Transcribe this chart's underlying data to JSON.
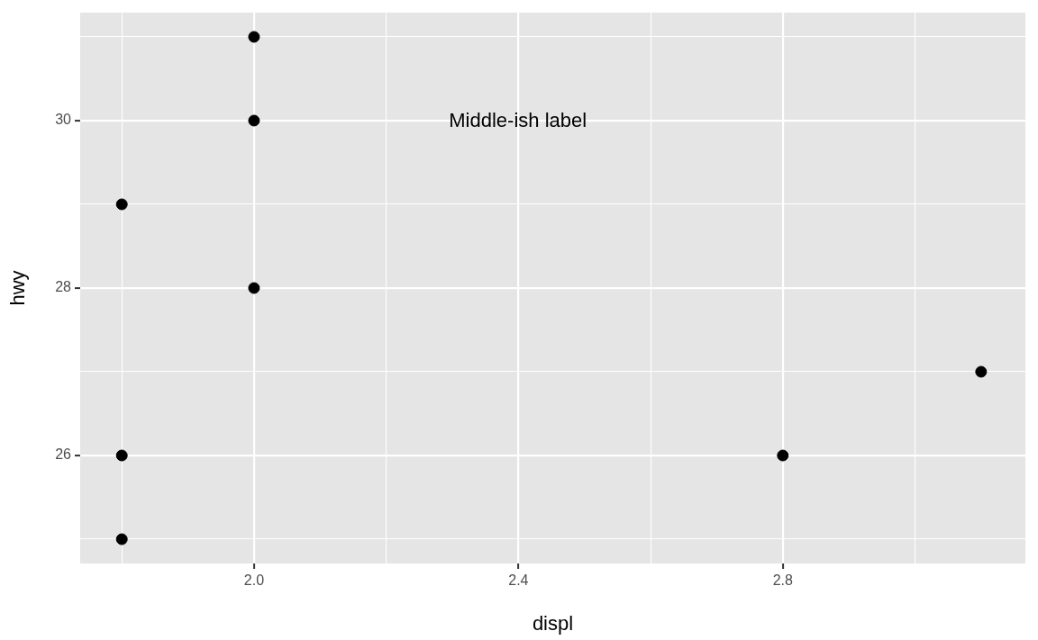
{
  "chart_data": {
    "type": "scatter",
    "xlabel": "displ",
    "ylabel": "hwy",
    "x": [
      1.8,
      1.8,
      1.8,
      2.0,
      2.0,
      2.0,
      2.8,
      3.1
    ],
    "values": [
      29,
      26,
      25,
      31,
      30,
      28,
      26,
      27
    ],
    "color": "#000000",
    "marker": "circle",
    "grid": true,
    "legend": false,
    "xlim": [
      1.737,
      3.167
    ],
    "ylim": [
      24.71,
      31.29
    ],
    "xticks": [
      {
        "value": 1.8,
        "label": null
      },
      "2.0",
      {
        "value": 2.2,
        "label": null
      },
      {
        "value": 2.4,
        "label": "2.4"
      },
      {
        "value": 2.6,
        "label": null
      },
      {
        "value": 2.8,
        "label": "2.8"
      },
      {
        "value": 3.0,
        "label": null
      }
    ],
    "yticks": [
      {
        "value": 25,
        "label": null
      },
      26,
      {
        "value": 27,
        "label": null
      },
      28,
      {
        "value": 29,
        "label": null
      },
      30,
      {
        "value": 31,
        "label": null
      }
    ],
    "annotations": [
      "Middle-ish label"
    ]
  }
}
